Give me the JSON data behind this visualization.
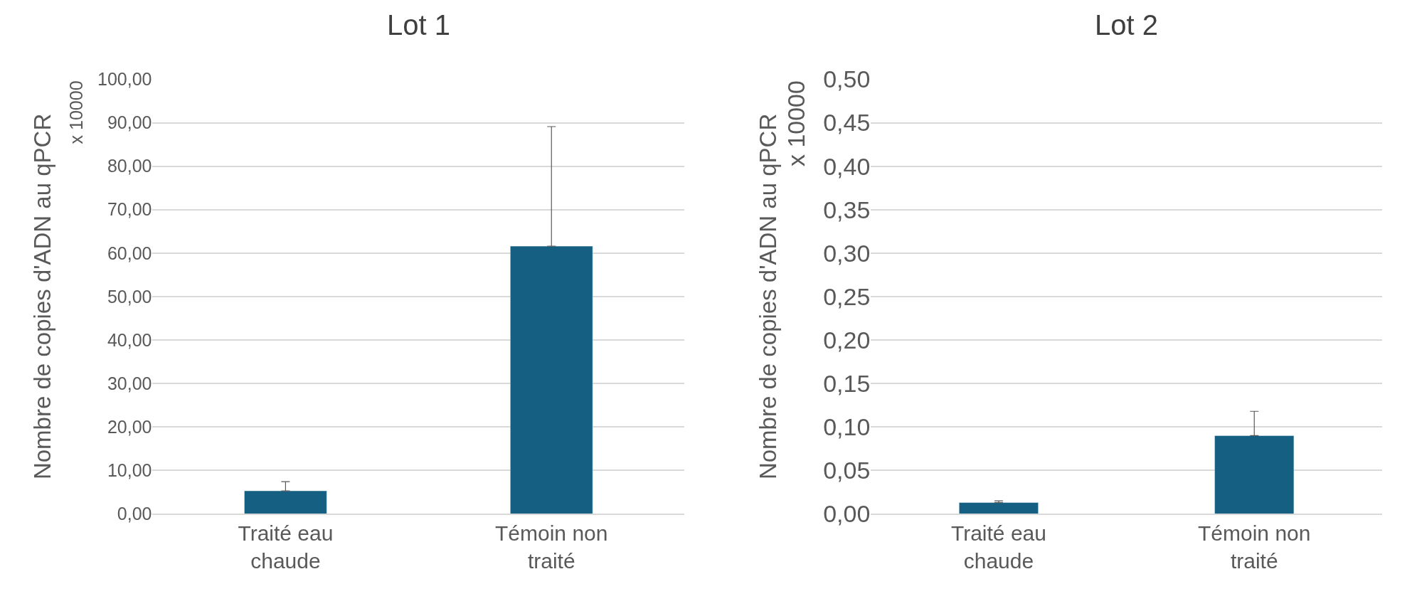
{
  "chart_data": [
    {
      "type": "bar",
      "title": "Lot 1",
      "ylabel": "Nombre de copies d'ADN au qPCR",
      "annotations": [
        "x 10000"
      ],
      "categories": [
        "Traité eau\nchaude",
        "Témoin non\ntraité"
      ],
      "values": [
        5.3,
        61.6
      ],
      "color": "#156082",
      "errors": [
        [
          5.3,
          7.4
        ],
        [
          61.6,
          89.1
        ]
      ],
      "ylim": [
        0,
        100
      ],
      "yticks": [
        {
          "value": 0,
          "label": "0,00"
        },
        {
          "value": 10,
          "label": "10,00"
        },
        {
          "value": 20,
          "label": "20,00"
        },
        {
          "value": 30,
          "label": "30,00"
        },
        {
          "value": 40,
          "label": "40,00"
        },
        {
          "value": 50,
          "label": "50,00"
        },
        {
          "value": 60,
          "label": "60,00"
        },
        {
          "value": 70,
          "label": "70,00"
        },
        {
          "value": 80,
          "label": "80,00"
        },
        {
          "value": 90,
          "label": "90,00"
        },
        {
          "value": 100,
          "label": "100,00"
        }
      ],
      "grid": "y"
    },
    {
      "type": "bar",
      "title": "Lot 2",
      "ylabel": "Nombre de copies d'ADN au qPCR",
      "annotations": [
        "x 10000"
      ],
      "categories": [
        "Traité eau\nchaude",
        "Témoin non\ntraité"
      ],
      "values": [
        0.013,
        0.09
      ],
      "color": "#156082",
      "errors": [
        [
          0.013,
          0.015
        ],
        [
          0.09,
          0.118
        ]
      ],
      "ylim": [
        0,
        0.5
      ],
      "yticks": [
        {
          "value": 0,
          "label": "0,00"
        },
        {
          "value": 0.05,
          "label": "0,05"
        },
        {
          "value": 0.1,
          "label": "0,10"
        },
        {
          "value": 0.15,
          "label": "0,15"
        },
        {
          "value": 0.2,
          "label": "0,20"
        },
        {
          "value": 0.25,
          "label": "0,25"
        },
        {
          "value": 0.3,
          "label": "0,30"
        },
        {
          "value": 0.35,
          "label": "0,35"
        },
        {
          "value": 0.4,
          "label": "0,40"
        },
        {
          "value": 0.45,
          "label": "0,45"
        },
        {
          "value": 0.5,
          "label": "0,50"
        }
      ],
      "grid": "y"
    }
  ]
}
